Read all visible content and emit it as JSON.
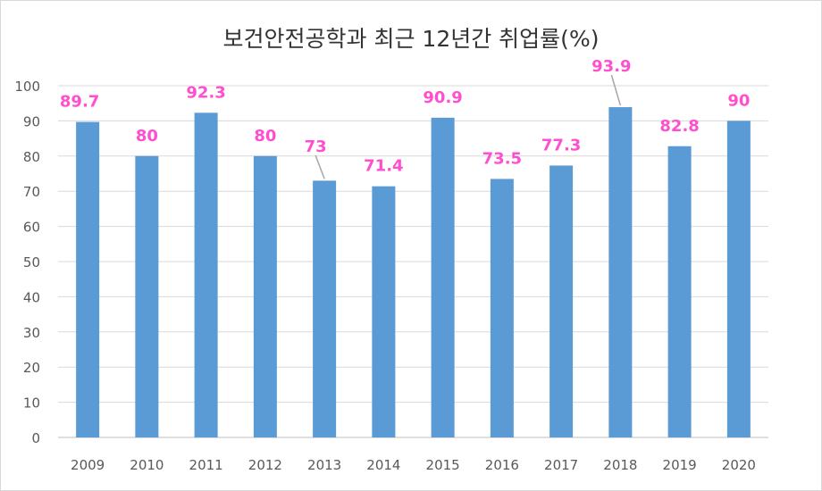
{
  "chart_data": {
    "type": "bar",
    "title": "보건안전공학과 최근 12년간 취업률(%)",
    "categories": [
      "2009",
      "2010",
      "2011",
      "2012",
      "2013",
      "2014",
      "2015",
      "2016",
      "2017",
      "2018",
      "2019",
      "2020"
    ],
    "values": [
      89.7,
      80,
      92.3,
      80,
      73,
      71.4,
      90.9,
      73.5,
      77.3,
      93.9,
      82.8,
      90
    ],
    "data_labels": [
      "89.7",
      "80",
      "92.3",
      "80",
      "73",
      "71.4",
      "90.9",
      "73.5",
      "77.3",
      "93.9",
      "82.8",
      "90"
    ],
    "xlabel": "",
    "ylabel": "",
    "ylim": [
      0,
      100
    ],
    "yticks": [
      "0",
      "10",
      "20",
      "30",
      "40",
      "50",
      "60",
      "70",
      "80",
      "90",
      "100"
    ],
    "grid": true,
    "legend": "none",
    "colors": {
      "bar": "#5b9bd5",
      "data_label": "#ff4fd0",
      "grid": "#d9d9d9",
      "axis_text": "#595959"
    }
  }
}
